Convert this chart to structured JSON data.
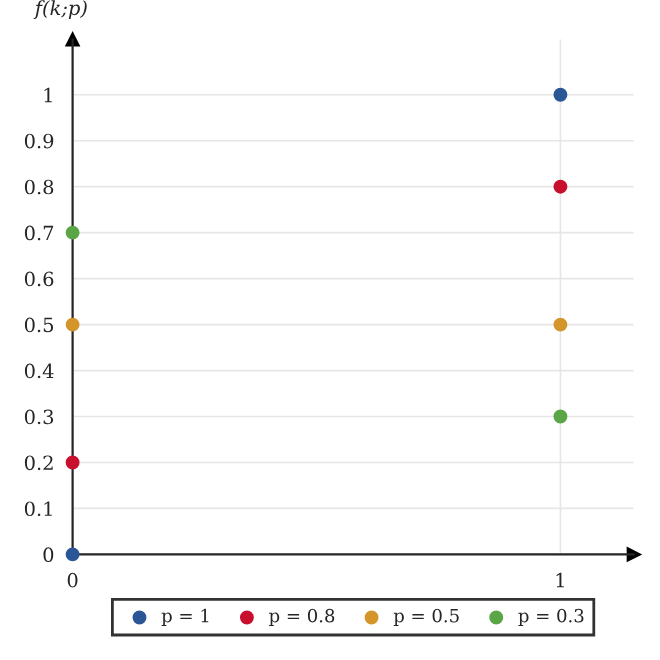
{
  "chart_data": {
    "type": "scatter",
    "ylabel": "f(k;p)",
    "x": [
      0,
      1
    ],
    "series": [
      {
        "name": "p = 1",
        "color": "#2b5797",
        "values": [
          0,
          1
        ]
      },
      {
        "name": "p = 0.8",
        "color": "#c8102e",
        "values": [
          0.2,
          0.8
        ]
      },
      {
        "name": "p = 0.5",
        "color": "#d4952b",
        "values": [
          0.5,
          0.5
        ]
      },
      {
        "name": "p = 0.3",
        "color": "#5aa646",
        "values": [
          0.7,
          0.3
        ]
      }
    ],
    "xlim": [
      0,
      1.15
    ],
    "ylim": [
      0,
      1.12
    ],
    "xticks": [
      0,
      1
    ],
    "yticks": [
      0,
      0.1,
      0.2,
      0.3,
      0.4,
      0.5,
      0.6,
      0.7,
      0.8,
      0.9,
      1
    ],
    "grid": true,
    "legend": "bottom",
    "marker": "circle"
  }
}
